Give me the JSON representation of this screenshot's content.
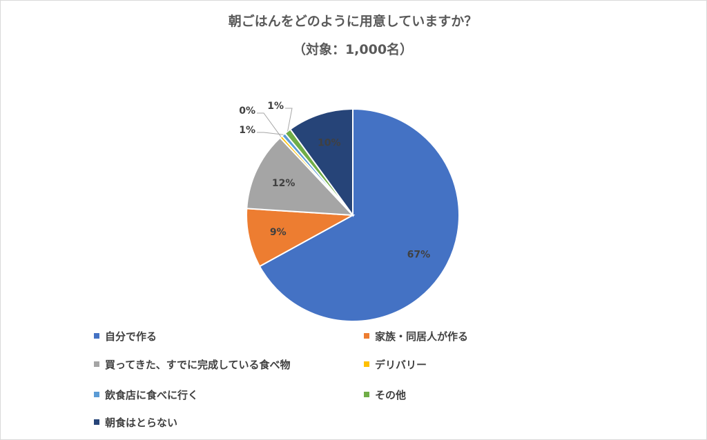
{
  "chart_data": {
    "type": "pie",
    "title": "朝ごはんをどのように用意していますか？",
    "subtitle": "（対象：1,000名）",
    "legend_position": "bottom",
    "slices": [
      {
        "name": "自分で作る",
        "value": 67,
        "label": "67%",
        "color": "#4472C4"
      },
      {
        "name": "家族・同居人が作る",
        "value": 9,
        "label": "9%",
        "color": "#ED7D31"
      },
      {
        "name": "買ってきた、すでに完成している食べ物",
        "value": 12,
        "label": "12%",
        "color": "#A5A5A5"
      },
      {
        "name": "デリバリー",
        "value": 0.4,
        "label": "0%",
        "color": "#FFC000"
      },
      {
        "name": "飲食店に食べに行く",
        "value": 0.6,
        "label": "1%",
        "color": "#5B9BD5"
      },
      {
        "name": "その他",
        "value": 1,
        "label": "1%",
        "color": "#70AD47"
      },
      {
        "name": "朝食はとらない",
        "value": 10,
        "label": "10%",
        "color": "#264478"
      }
    ]
  }
}
